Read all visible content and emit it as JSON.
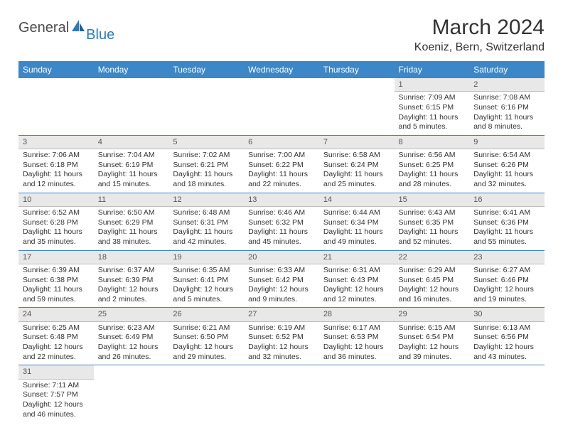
{
  "brand": {
    "general": "General",
    "blue": "Blue"
  },
  "title": "March 2024",
  "subtitle": "Koeniz, Bern, Switzerland",
  "colors": {
    "header_bg": "#3b87c8",
    "header_text": "#ffffff",
    "daynum_bg": "#e8e8e8",
    "sep": "#3b87c8",
    "body_text": "#333333"
  },
  "weekdays": [
    "Sunday",
    "Monday",
    "Tuesday",
    "Wednesday",
    "Thursday",
    "Friday",
    "Saturday"
  ],
  "weeks": [
    [
      null,
      null,
      null,
      null,
      null,
      {
        "n": "1",
        "rise": "7:09 AM",
        "set": "6:15 PM",
        "dl": "11 hours and 5 minutes."
      },
      {
        "n": "2",
        "rise": "7:08 AM",
        "set": "6:16 PM",
        "dl": "11 hours and 8 minutes."
      }
    ],
    [
      {
        "n": "3",
        "rise": "7:06 AM",
        "set": "6:18 PM",
        "dl": "11 hours and 12 minutes."
      },
      {
        "n": "4",
        "rise": "7:04 AM",
        "set": "6:19 PM",
        "dl": "11 hours and 15 minutes."
      },
      {
        "n": "5",
        "rise": "7:02 AM",
        "set": "6:21 PM",
        "dl": "11 hours and 18 minutes."
      },
      {
        "n": "6",
        "rise": "7:00 AM",
        "set": "6:22 PM",
        "dl": "11 hours and 22 minutes."
      },
      {
        "n": "7",
        "rise": "6:58 AM",
        "set": "6:24 PM",
        "dl": "11 hours and 25 minutes."
      },
      {
        "n": "8",
        "rise": "6:56 AM",
        "set": "6:25 PM",
        "dl": "11 hours and 28 minutes."
      },
      {
        "n": "9",
        "rise": "6:54 AM",
        "set": "6:26 PM",
        "dl": "11 hours and 32 minutes."
      }
    ],
    [
      {
        "n": "10",
        "rise": "6:52 AM",
        "set": "6:28 PM",
        "dl": "11 hours and 35 minutes."
      },
      {
        "n": "11",
        "rise": "6:50 AM",
        "set": "6:29 PM",
        "dl": "11 hours and 38 minutes."
      },
      {
        "n": "12",
        "rise": "6:48 AM",
        "set": "6:31 PM",
        "dl": "11 hours and 42 minutes."
      },
      {
        "n": "13",
        "rise": "6:46 AM",
        "set": "6:32 PM",
        "dl": "11 hours and 45 minutes."
      },
      {
        "n": "14",
        "rise": "6:44 AM",
        "set": "6:34 PM",
        "dl": "11 hours and 49 minutes."
      },
      {
        "n": "15",
        "rise": "6:43 AM",
        "set": "6:35 PM",
        "dl": "11 hours and 52 minutes."
      },
      {
        "n": "16",
        "rise": "6:41 AM",
        "set": "6:36 PM",
        "dl": "11 hours and 55 minutes."
      }
    ],
    [
      {
        "n": "17",
        "rise": "6:39 AM",
        "set": "6:38 PM",
        "dl": "11 hours and 59 minutes."
      },
      {
        "n": "18",
        "rise": "6:37 AM",
        "set": "6:39 PM",
        "dl": "12 hours and 2 minutes."
      },
      {
        "n": "19",
        "rise": "6:35 AM",
        "set": "6:41 PM",
        "dl": "12 hours and 5 minutes."
      },
      {
        "n": "20",
        "rise": "6:33 AM",
        "set": "6:42 PM",
        "dl": "12 hours and 9 minutes."
      },
      {
        "n": "21",
        "rise": "6:31 AM",
        "set": "6:43 PM",
        "dl": "12 hours and 12 minutes."
      },
      {
        "n": "22",
        "rise": "6:29 AM",
        "set": "6:45 PM",
        "dl": "12 hours and 16 minutes."
      },
      {
        "n": "23",
        "rise": "6:27 AM",
        "set": "6:46 PM",
        "dl": "12 hours and 19 minutes."
      }
    ],
    [
      {
        "n": "24",
        "rise": "6:25 AM",
        "set": "6:48 PM",
        "dl": "12 hours and 22 minutes."
      },
      {
        "n": "25",
        "rise": "6:23 AM",
        "set": "6:49 PM",
        "dl": "12 hours and 26 minutes."
      },
      {
        "n": "26",
        "rise": "6:21 AM",
        "set": "6:50 PM",
        "dl": "12 hours and 29 minutes."
      },
      {
        "n": "27",
        "rise": "6:19 AM",
        "set": "6:52 PM",
        "dl": "12 hours and 32 minutes."
      },
      {
        "n": "28",
        "rise": "6:17 AM",
        "set": "6:53 PM",
        "dl": "12 hours and 36 minutes."
      },
      {
        "n": "29",
        "rise": "6:15 AM",
        "set": "6:54 PM",
        "dl": "12 hours and 39 minutes."
      },
      {
        "n": "30",
        "rise": "6:13 AM",
        "set": "6:56 PM",
        "dl": "12 hours and 43 minutes."
      }
    ],
    [
      {
        "n": "31",
        "rise": "7:11 AM",
        "set": "7:57 PM",
        "dl": "12 hours and 46 minutes."
      },
      null,
      null,
      null,
      null,
      null,
      null
    ]
  ],
  "labels": {
    "sunrise": "Sunrise: ",
    "sunset": "Sunset: ",
    "daylight": "Daylight: "
  }
}
